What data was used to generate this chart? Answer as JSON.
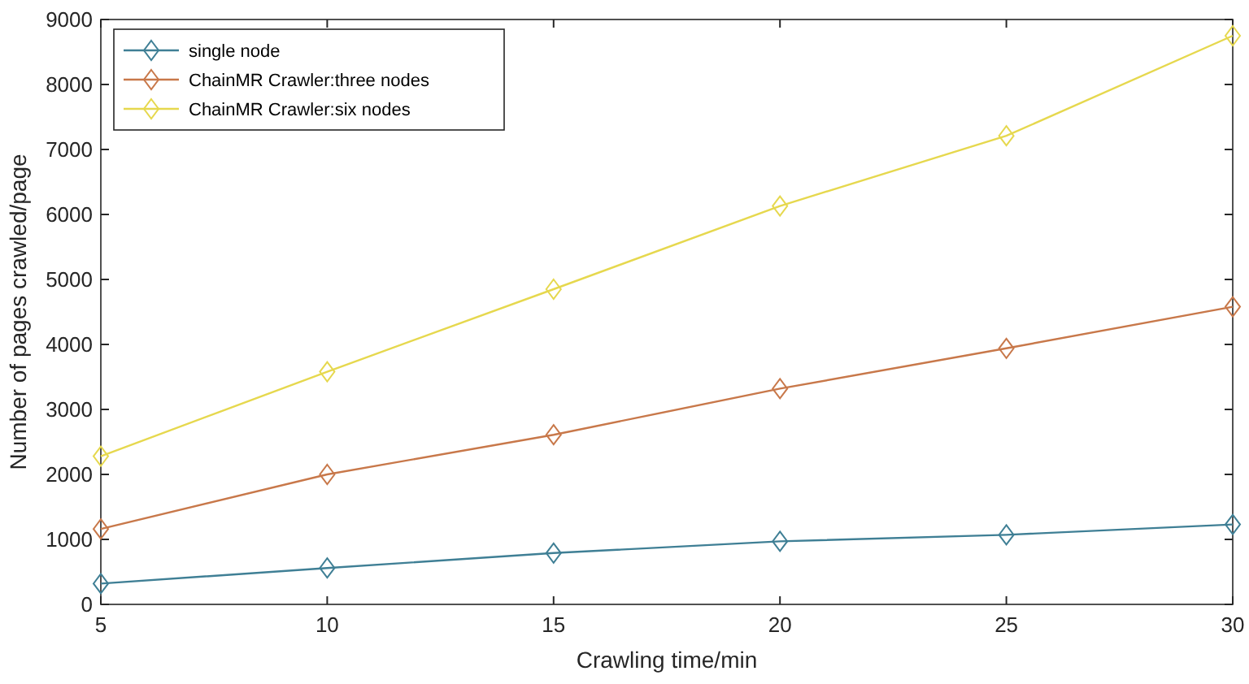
{
  "chart_data": {
    "type": "line",
    "xlabel": "Crawling time/min",
    "ylabel": "Number of pages crawled/page",
    "x": [
      5,
      10,
      15,
      20,
      25,
      30
    ],
    "series": [
      {
        "name": "single node",
        "color": "#3f7f95",
        "values": [
          320,
          560,
          790,
          970,
          1070,
          1230
        ]
      },
      {
        "name": "ChainMR Crawler:three nodes",
        "color": "#c8784a",
        "values": [
          1160,
          2000,
          2610,
          3320,
          3940,
          4580
        ]
      },
      {
        "name": "ChainMR Crawler:six nodes",
        "color": "#e6d84e",
        "values": [
          2280,
          3580,
          4850,
          6130,
          7210,
          8750
        ]
      }
    ],
    "xlim": [
      5,
      30
    ],
    "xticks": [
      5,
      10,
      15,
      20,
      25,
      30
    ],
    "ylim": [
      0,
      9000
    ],
    "yticks": [
      0,
      1000,
      2000,
      3000,
      4000,
      5000,
      6000,
      7000,
      8000,
      9000
    ],
    "grid": false,
    "legend": "top left",
    "marker": "diamond",
    "line_style": "solid"
  }
}
